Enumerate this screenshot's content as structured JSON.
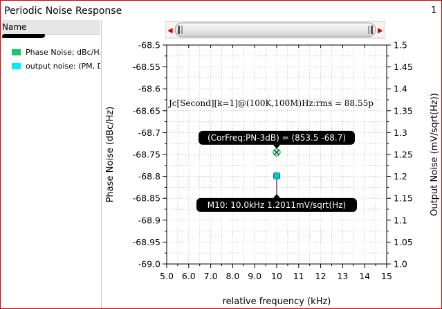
{
  "window": {
    "title": "Periodic Noise Response",
    "page_number": "1"
  },
  "legend": {
    "header": "Name",
    "items": [
      {
        "label": "Phase Noise; dBc/Hz",
        "color": "#1fc46b"
      },
      {
        "label": "output noise: (PM, DSB)",
        "color": "#00f0f0"
      }
    ]
  },
  "scroller": {
    "left_arrow": "◀",
    "right_arrow": "▶"
  },
  "chart_data": {
    "type": "scatter",
    "xlabel": "relative frequency (kHz)",
    "ylabel_left": "Phase Noise (dBc/Hz)",
    "ylabel_right": "Output Noise (mV/sqrt(Hz))",
    "xlim": [
      5.0,
      15.0
    ],
    "ylim_left": [
      -69.0,
      -68.5
    ],
    "ylim_right": [
      1.0,
      1.5
    ],
    "x_ticks": [
      "5.0",
      "6.0",
      "7.0",
      "8.0",
      "9.0",
      "10",
      "11",
      "12",
      "13",
      "14",
      "15"
    ],
    "x_tick_values": [
      5,
      6,
      7,
      8,
      9,
      10,
      11,
      12,
      13,
      14,
      15
    ],
    "y_left_ticks": [
      "-68.5",
      "-68.55",
      "-68.6",
      "-68.65",
      "-68.7",
      "-68.75",
      "-68.8",
      "-68.85",
      "-68.9",
      "-68.95",
      "-69.0"
    ],
    "y_left_tick_values": [
      -68.5,
      -68.55,
      -68.6,
      -68.65,
      -68.7,
      -68.75,
      -68.8,
      -68.85,
      -68.9,
      -68.95,
      -69.0
    ],
    "y_right_ticks": [
      "1.5",
      "1.45",
      "1.4",
      "1.35",
      "1.3",
      "1.25",
      "1.2",
      "1.15",
      "1.1",
      "1.05",
      "1.0"
    ],
    "y_right_tick_values": [
      1.5,
      1.45,
      1.4,
      1.35,
      1.3,
      1.25,
      1.2,
      1.15,
      1.1,
      1.05,
      1.0
    ],
    "grid": true,
    "annotation": "Jc[Second][k=1]@(100K,100M)Hz:rms = 88.55p",
    "series": [
      {
        "name": "Phase Noise; dBc/Hz",
        "axis": "left",
        "color": "#1fc46b",
        "x": [
          10.0
        ],
        "y": [
          -68.745
        ]
      },
      {
        "name": "output noise: (PM, DSB)",
        "axis": "right",
        "color": "#00c8c8",
        "x": [
          10.0
        ],
        "y": [
          1.2011
        ]
      }
    ],
    "markers": [
      {
        "label": "(CorFreq:PN-3dB) = (853.5 -68.7)",
        "x": 10.0,
        "y": -68.745,
        "axis": "left"
      },
      {
        "label": "M10: 10.0kHz 1.2011mV/sqrt(Hz)",
        "x": 10.0,
        "y": 1.2011,
        "axis": "right"
      }
    ]
  }
}
